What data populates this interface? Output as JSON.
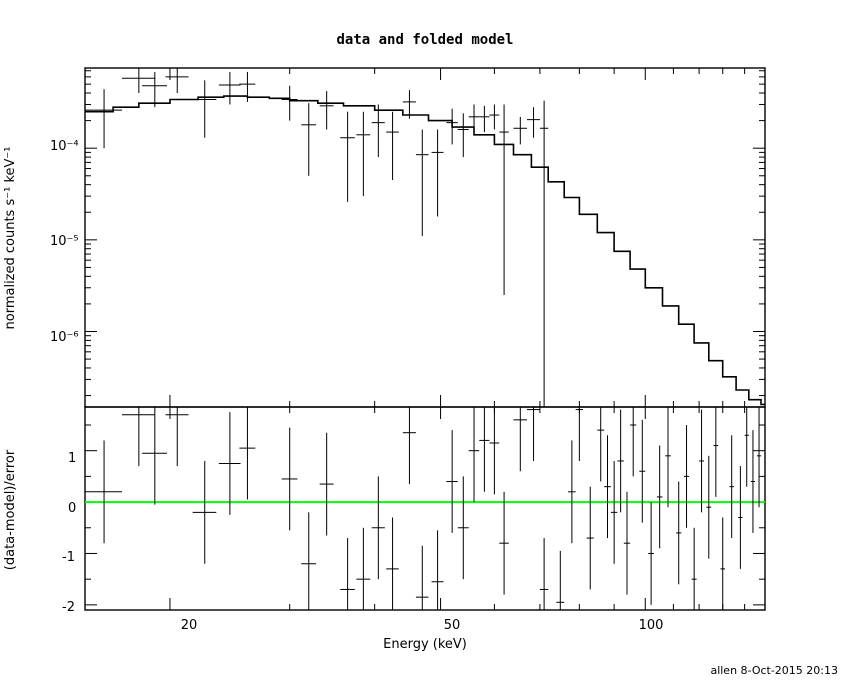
{
  "chart_data": [
    {
      "type": "scatter",
      "title": "data and folded model",
      "ylabel": "normalized counts s⁻¹ keV⁻¹",
      "y_scale": "log",
      "x_scale": "log",
      "xlim": [
        15,
        150
      ],
      "ylim": [
        1.5e-07,
        0.00075
      ],
      "y_tick_labels": [
        "10⁻⁴",
        "10⁻⁵",
        "10⁻⁶"
      ],
      "series": [
        {
          "kind": "data-with-errors",
          "points": [
            {
              "x": 16.0,
              "xerr": 1.0,
              "y": 0.00026,
              "ylo": 0.0001,
              "yhi": 0.00044
            },
            {
              "x": 18.0,
              "xerr": 1.0,
              "y": 0.00058,
              "ylo": 0.0004,
              "yhi": 0.00076
            },
            {
              "x": 19.0,
              "xerr": 0.8,
              "y": 0.00048,
              "ylo": 0.00028,
              "yhi": 0.00068
            },
            {
              "x": 20.5,
              "xerr": 0.8,
              "y": 0.0006,
              "ylo": 0.0004,
              "yhi": 0.0008
            },
            {
              "x": 22.5,
              "xerr": 0.9,
              "y": 0.00034,
              "ylo": 0.00013,
              "yhi": 0.00055
            },
            {
              "x": 24.5,
              "xerr": 0.9,
              "y": 0.00049,
              "ylo": 0.0003,
              "yhi": 0.00068
            },
            {
              "x": 26.0,
              "xerr": 0.7,
              "y": 0.0005,
              "ylo": 0.00032,
              "yhi": 0.00068
            },
            {
              "x": 30.0,
              "xerr": 0.8,
              "y": 0.00034,
              "ylo": 0.0002,
              "yhi": 0.00048
            },
            {
              "x": 32.0,
              "xerr": 0.8,
              "y": 0.00018,
              "ylo": 5e-05,
              "yhi": 0.00031
            },
            {
              "x": 34.0,
              "xerr": 0.8,
              "y": 0.00029,
              "ylo": 0.00016,
              "yhi": 0.00042
            },
            {
              "x": 36.5,
              "xerr": 0.9,
              "y": 0.00013,
              "ylo": 2.6e-05,
              "yhi": 0.00025
            },
            {
              "x": 38.5,
              "xerr": 0.9,
              "y": 0.00014,
              "ylo": 3e-05,
              "yhi": 0.00025
            },
            {
              "x": 40.5,
              "xerr": 0.9,
              "y": 0.00019,
              "ylo": 8e-05,
              "yhi": 0.0003
            },
            {
              "x": 42.5,
              "xerr": 0.9,
              "y": 0.00015,
              "ylo": 4.5e-05,
              "yhi": 0.00025
            },
            {
              "x": 45.0,
              "xerr": 1.0,
              "y": 0.00032,
              "ylo": 0.00021,
              "yhi": 0.00043
            },
            {
              "x": 47.0,
              "xerr": 1.0,
              "y": 8.5e-05,
              "ylo": 1.1e-05,
              "yhi": 0.00016
            },
            {
              "x": 49.5,
              "xerr": 1.0,
              "y": 9e-05,
              "ylo": 1.8e-05,
              "yhi": 0.00016
            },
            {
              "x": 52.0,
              "xerr": 1.0,
              "y": 0.00019,
              "ylo": 0.00011,
              "yhi": 0.00027
            },
            {
              "x": 54.0,
              "xerr": 1.0,
              "y": 0.00016,
              "ylo": 8e-05,
              "yhi": 0.00024
            },
            {
              "x": 56.0,
              "xerr": 1.0,
              "y": 0.00022,
              "ylo": 0.00014,
              "yhi": 0.0003
            },
            {
              "x": 58.0,
              "xerr": 1.0,
              "y": 0.00022,
              "ylo": 0.00015,
              "yhi": 0.00029
            },
            {
              "x": 60.0,
              "xerr": 1.0,
              "y": 0.00023,
              "ylo": 0.00016,
              "yhi": 0.0003
            },
            {
              "x": 62.0,
              "xerr": 1.0,
              "y": 0.00015,
              "ylo": 2.5e-06,
              "yhi": 0.0003
            },
            {
              "x": 65.5,
              "xerr": 1.5,
              "y": 0.000165,
              "ylo": 0.00011,
              "yhi": 0.00022
            },
            {
              "x": 68.5,
              "xerr": 1.5,
              "y": 0.000205,
              "ylo": 0.00013,
              "yhi": 0.00028
            },
            {
              "x": 71.0,
              "xerr": 1.0,
              "y": 0.000165,
              "ylo": 1.5e-07,
              "yhi": 0.00033
            }
          ]
        },
        {
          "kind": "model-step",
          "x": [
            15,
            16.5,
            18,
            20,
            22,
            24,
            26,
            28,
            30,
            33,
            36,
            40,
            44,
            48,
            52,
            56,
            60,
            64,
            68,
            72,
            76,
            80,
            85,
            90,
            95,
            100,
            106,
            112,
            118,
            124,
            130,
            136,
            142,
            148,
            150
          ],
          "y": [
            0.00025,
            0.00028,
            0.00031,
            0.00034,
            0.00036,
            0.00037,
            0.00036,
            0.00035,
            0.00033,
            0.00031,
            0.00029,
            0.00026,
            0.00023,
            0.0002,
            0.00017,
            0.00014,
            0.00011,
            8.5e-05,
            6.2e-05,
            4.3e-05,
            2.9e-05,
            1.9e-05,
            1.2e-05,
            7.5e-06,
            4.8e-06,
            3e-06,
            1.9e-06,
            1.2e-06,
            7.5e-07,
            4.8e-07,
            3.2e-07,
            2.3e-07,
            1.8e-07,
            1.6e-07,
            1.5e-07
          ]
        }
      ]
    },
    {
      "type": "scatter",
      "xlabel": "Energy (keV)",
      "ylabel": "(data-model)/error",
      "x_scale": "log",
      "xlim": [
        15,
        150
      ],
      "ylim": [
        -2.1,
        1.85
      ],
      "x_tick_labels": [
        "20",
        "50",
        "100"
      ],
      "y_tick_labels": [
        "1",
        "0",
        "-1",
        "-2"
      ],
      "reference_line": {
        "y": 0,
        "color": "#00ff00"
      },
      "series": [
        {
          "kind": "residuals",
          "points": [
            {
              "x": 16.0,
              "xerr": 1.0,
              "y": 0.2,
              "yerr": 1.0
            },
            {
              "x": 18.0,
              "xerr": 1.0,
              "y": 1.7,
              "yerr": 1.0
            },
            {
              "x": 19.0,
              "xerr": 0.8,
              "y": 0.95,
              "yerr": 1.0
            },
            {
              "x": 20.5,
              "xerr": 0.8,
              "y": 1.7,
              "yerr": 1.0
            },
            {
              "x": 22.5,
              "xerr": 0.9,
              "y": -0.2,
              "yerr": 1.0
            },
            {
              "x": 24.5,
              "xerr": 0.9,
              "y": 0.75,
              "yerr": 1.0
            },
            {
              "x": 26.0,
              "xerr": 0.7,
              "y": 1.05,
              "yerr": 1.0
            },
            {
              "x": 30.0,
              "xerr": 0.8,
              "y": 0.45,
              "yerr": 1.0
            },
            {
              "x": 32.0,
              "xerr": 0.8,
              "y": -1.2,
              "yerr": 1.0
            },
            {
              "x": 34.0,
              "xerr": 0.8,
              "y": 0.35,
              "yerr": 1.0
            },
            {
              "x": 36.5,
              "xerr": 0.9,
              "y": -1.7,
              "yerr": 1.0
            },
            {
              "x": 38.5,
              "xerr": 0.9,
              "y": -1.5,
              "yerr": 1.0
            },
            {
              "x": 40.5,
              "xerr": 0.9,
              "y": -0.5,
              "yerr": 1.0
            },
            {
              "x": 42.5,
              "xerr": 0.9,
              "y": -1.3,
              "yerr": 1.0
            },
            {
              "x": 45.0,
              "xerr": 1.0,
              "y": 1.35,
              "yerr": 1.0
            },
            {
              "x": 47.0,
              "xerr": 1.0,
              "y": -1.85,
              "yerr": 1.0
            },
            {
              "x": 49.5,
              "xerr": 1.0,
              "y": -1.55,
              "yerr": 1.0
            },
            {
              "x": 52.0,
              "xerr": 1.0,
              "y": 0.4,
              "yerr": 1.0
            },
            {
              "x": 54.0,
              "xerr": 1.0,
              "y": -0.5,
              "yerr": 1.0
            },
            {
              "x": 56.0,
              "xerr": 1.0,
              "y": 1.0,
              "yerr": 1.0
            },
            {
              "x": 58.0,
              "xerr": 1.0,
              "y": 1.2,
              "yerr": 1.0
            },
            {
              "x": 60.0,
              "xerr": 1.0,
              "y": 1.15,
              "yerr": 1.0
            },
            {
              "x": 62.0,
              "xerr": 1.0,
              "y": -0.8,
              "yerr": 1.0
            },
            {
              "x": 65.5,
              "xerr": 1.5,
              "y": 1.6,
              "yerr": 1.0
            },
            {
              "x": 68.5,
              "xerr": 1.5,
              "y": 1.8,
              "yerr": 1.0
            },
            {
              "x": 71.0,
              "xerr": 1.0,
              "y": -1.7,
              "yerr": 1.0
            },
            {
              "x": 75.0,
              "xerr": 1.0,
              "y": -1.95,
              "yerr": 1.0
            },
            {
              "x": 78.0,
              "xerr": 1.0,
              "y": 0.2,
              "yerr": 1.0
            },
            {
              "x": 80.0,
              "xerr": 1.0,
              "y": 1.8,
              "yerr": 1.0
            },
            {
              "x": 83.0,
              "xerr": 1.0,
              "y": -0.7,
              "yerr": 1.0
            },
            {
              "x": 86.0,
              "xerr": 1.0,
              "y": 1.4,
              "yerr": 1.0
            },
            {
              "x": 88.0,
              "xerr": 1.0,
              "y": 0.3,
              "yerr": 1.0
            },
            {
              "x": 90.0,
              "xerr": 1.0,
              "y": -0.2,
              "yerr": 1.0
            },
            {
              "x": 92.0,
              "xerr": 1.0,
              "y": 0.8,
              "yerr": 1.0
            },
            {
              "x": 94.0,
              "xerr": 1.0,
              "y": -0.8,
              "yerr": 1.0
            },
            {
              "x": 96.0,
              "xerr": 1.0,
              "y": 1.5,
              "yerr": 1.0
            },
            {
              "x": 99.0,
              "xerr": 1.0,
              "y": 0.6,
              "yerr": 1.0
            },
            {
              "x": 102.0,
              "xerr": 1.0,
              "y": -1.0,
              "yerr": 1.0
            },
            {
              "x": 105.0,
              "xerr": 1.0,
              "y": 0.1,
              "yerr": 1.0
            },
            {
              "x": 108.0,
              "xerr": 1.0,
              "y": 0.9,
              "yerr": 1.0
            },
            {
              "x": 112.0,
              "xerr": 1.0,
              "y": -0.6,
              "yerr": 1.0
            },
            {
              "x": 115.0,
              "xerr": 1.0,
              "y": 0.5,
              "yerr": 1.0
            },
            {
              "x": 118.0,
              "xerr": 1.0,
              "y": -1.5,
              "yerr": 1.0
            },
            {
              "x": 121.0,
              "xerr": 1.0,
              "y": 0.8,
              "yerr": 1.0
            },
            {
              "x": 124.0,
              "xerr": 1.0,
              "y": -0.1,
              "yerr": 1.0
            },
            {
              "x": 127.0,
              "xerr": 1.0,
              "y": 1.1,
              "yerr": 1.0
            },
            {
              "x": 130.0,
              "xerr": 1.0,
              "y": -1.3,
              "yerr": 1.0
            },
            {
              "x": 134.0,
              "xerr": 1.0,
              "y": 0.3,
              "yerr": 1.0
            },
            {
              "x": 138.0,
              "xerr": 1.0,
              "y": -0.3,
              "yerr": 1.0
            },
            {
              "x": 141.0,
              "xerr": 1.0,
              "y": 1.3,
              "yerr": 1.0
            },
            {
              "x": 144.0,
              "xerr": 1.0,
              "y": 0.4,
              "yerr": 1.0
            },
            {
              "x": 147.0,
              "xerr": 1.0,
              "y": 0.9,
              "yerr": 1.0
            }
          ]
        }
      ]
    }
  ],
  "footer": {
    "credit": "allen  8-Oct-2015 20:13"
  },
  "colors": {
    "axes": "#000000",
    "zero_line": "#00ff00"
  }
}
